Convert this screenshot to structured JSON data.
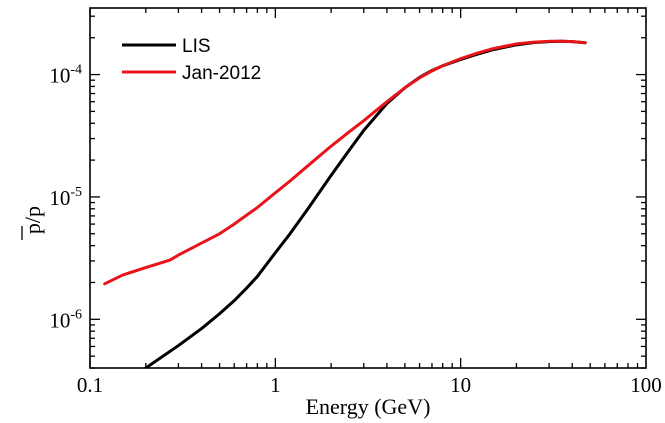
{
  "chart_data": {
    "type": "line",
    "xlabel": "Energy (GeV)",
    "ylabel": "p/p",
    "x_scale": "log",
    "y_scale": "log",
    "xlim": [
      0.1,
      100
    ],
    "ylim": [
      4e-07,
      0.00035
    ],
    "x_ticks": [
      {
        "value": 0.1,
        "label": "0.1"
      },
      {
        "value": 1,
        "label": "1"
      },
      {
        "value": 10,
        "label": "10"
      },
      {
        "value": 100,
        "label": "100"
      }
    ],
    "y_ticks": [
      {
        "value": 1e-06,
        "base": "10",
        "exp": "-6"
      },
      {
        "value": 1e-05,
        "base": "10",
        "exp": "-5"
      },
      {
        "value": 0.0001,
        "base": "10",
        "exp": "-4"
      }
    ],
    "grid": false,
    "legend_position": "top-left",
    "series": [
      {
        "name": "LIS",
        "color": "#000000",
        "x": [
          0.2,
          0.3,
          0.4,
          0.5,
          0.6,
          0.7,
          0.8,
          1.0,
          1.2,
          1.5,
          2.0,
          2.5,
          3.0,
          4.0,
          5.0,
          6.0,
          7.0,
          8.0,
          10,
          12,
          15,
          20,
          25,
          30,
          35,
          40,
          47
        ],
        "y": [
          4e-07,
          6.1e-07,
          8.4e-07,
          1.11e-06,
          1.42e-06,
          1.8e-06,
          2.24e-06,
          3.5e-06,
          5e-06,
          8e-06,
          1.5e-05,
          2.4e-05,
          3.5e-05,
          5.8e-05,
          7.8e-05,
          9.5e-05,
          0.000108,
          0.000118,
          0.000133,
          0.000145,
          0.00016,
          0.000175,
          0.000183,
          0.000186,
          0.000187,
          0.000186,
          0.000182
        ]
      },
      {
        "name": "Jan-2012",
        "color": "#e8141a",
        "x": [
          0.12,
          0.15,
          0.2,
          0.27,
          0.3,
          0.4,
          0.5,
          0.6,
          0.7,
          0.8,
          1.0,
          1.2,
          1.5,
          2.0,
          2.5,
          3.0,
          4.0,
          5.0,
          6.0,
          7.0,
          8.0,
          10,
          12,
          15,
          20,
          25,
          30,
          35,
          40,
          47
        ],
        "y": [
          1.95e-06,
          2.3e-06,
          2.65e-06,
          3.05e-06,
          3.35e-06,
          4.2e-06,
          5e-06,
          6e-06,
          7.1e-06,
          8.2e-06,
          1.08e-05,
          1.35e-05,
          1.8e-05,
          2.6e-05,
          3.4e-05,
          4.2e-05,
          6e-05,
          7.8e-05,
          9.4e-05,
          0.000107,
          0.000118,
          0.000135,
          0.000148,
          0.000163,
          0.000178,
          0.000184,
          0.000187,
          0.000187,
          0.000186,
          0.000182
        ]
      }
    ]
  }
}
